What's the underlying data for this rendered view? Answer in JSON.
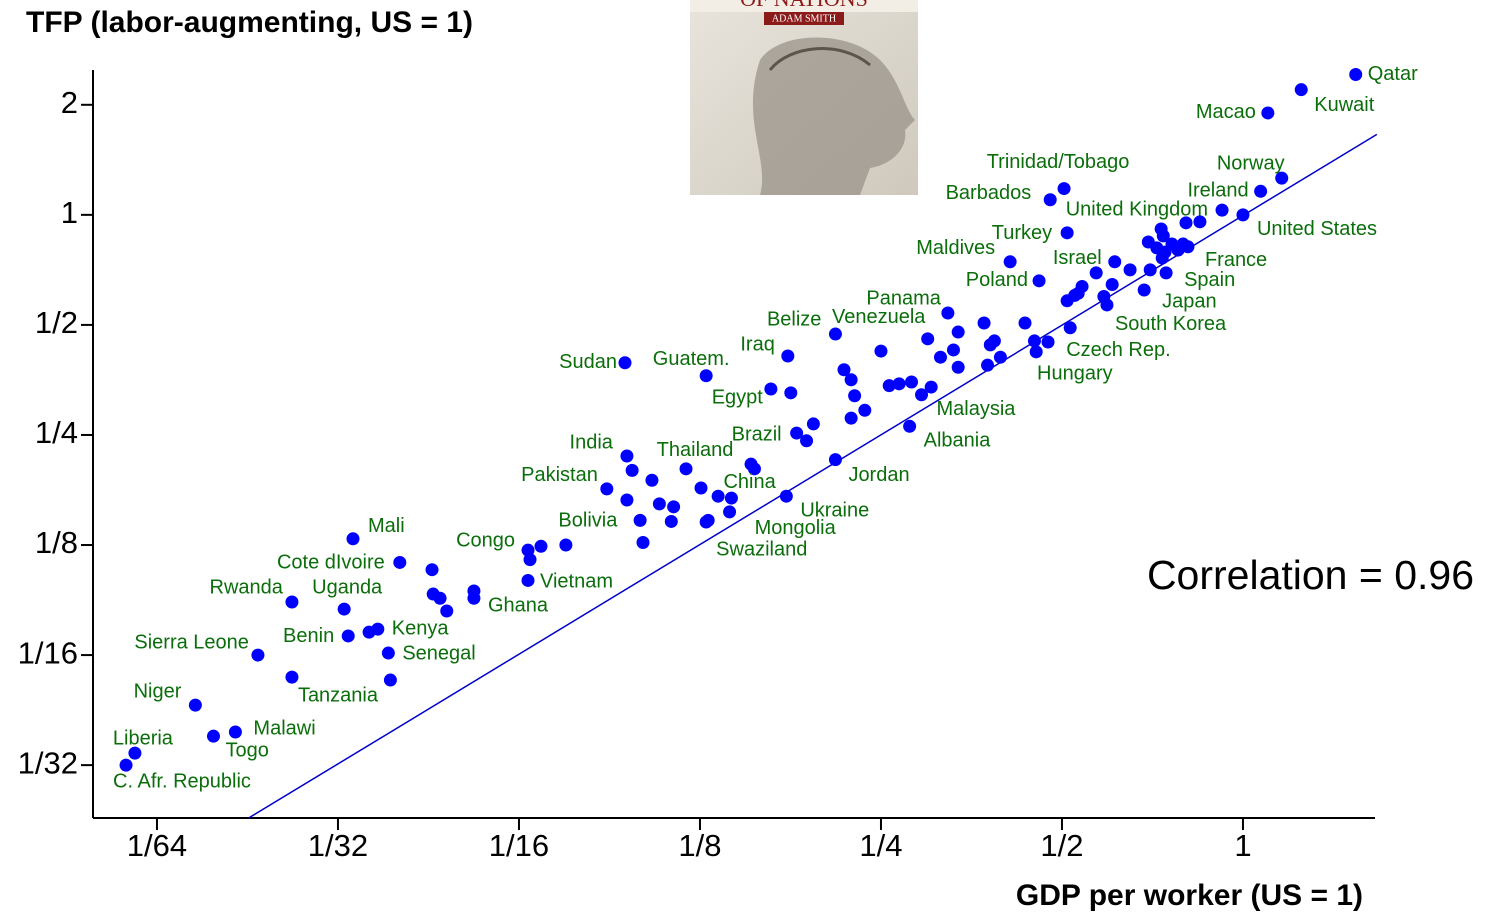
{
  "chart_data": {
    "type": "scatter",
    "ylabel": "TFP (labor-augmenting, US = 1)",
    "xlabel": "GDP per worker (US = 1)",
    "annotation": "Correlation = 0.96",
    "inset": {
      "title": "OF NATIONS",
      "author": "ADAM SMITH"
    },
    "xscale": "log",
    "yscale": "log",
    "xlim": [
      0.01223,
      1.658
    ],
    "ylim": [
      0.0224,
      2.49
    ],
    "xticks": [
      {
        "value": 0.015625,
        "label": "1/64"
      },
      {
        "value": 0.03125,
        "label": "1/32"
      },
      {
        "value": 0.0625,
        "label": "1/16"
      },
      {
        "value": 0.125,
        "label": "1/8"
      },
      {
        "value": 0.25,
        "label": "1/4"
      },
      {
        "value": 0.5,
        "label": "1/2"
      },
      1
    ],
    "yticks": [
      {
        "value": 0.03125,
        "label": "1/32"
      },
      {
        "value": 0.0625,
        "label": "1/16"
      },
      {
        "value": 0.125,
        "label": "1/8"
      },
      {
        "value": 0.25,
        "label": "1/4"
      },
      {
        "value": 0.5,
        "label": "1/2"
      },
      1,
      2
    ],
    "grid": false,
    "color": "#0000ff",
    "fit_line": {
      "x": [
        0.0222,
        1.67
      ],
      "y": [
        0.0224,
        1.66
      ],
      "color": "#0000cc"
    },
    "labels": [
      "Qatar",
      "Kuwait",
      "Macao",
      "Norway",
      "Ireland",
      "United States",
      "United Kingdom",
      "Trinidad/Tobago",
      "Barbados",
      "Turkey",
      "Maldives",
      "Israel",
      "Poland",
      "France",
      "Spain",
      "Japan",
      "South Korea",
      "Czech Rep.",
      "Hungary",
      "Panama",
      "Belize",
      "Venezuela",
      "Iraq",
      "Egypt",
      "Sudan",
      "Guatem.",
      "Malaysia",
      "Albania",
      "Brazil",
      "Jordan",
      "India",
      "Thailand",
      "Pakistan",
      "China",
      "Ukraine",
      "Mongolia",
      "Swaziland",
      "Bolivia",
      "Congo",
      "Vietnam",
      "Mali",
      "Cote dIvoire",
      "Rwanda",
      "Uganda",
      "Ghana",
      "Kenya",
      "Benin",
      "Senegal",
      "Sierra Leone",
      "Tanzania",
      "Niger",
      "Malawi",
      "Togo",
      "Liberia",
      "C. Afr. Republic",
      null,
      null,
      null,
      null,
      null,
      null,
      null,
      null,
      null,
      null,
      null,
      null,
      null,
      null,
      null,
      null,
      null,
      null,
      null,
      null,
      null,
      null,
      null,
      null,
      null,
      null,
      null,
      null,
      null,
      null,
      null,
      null,
      null,
      null,
      null,
      null,
      null,
      null,
      null,
      null,
      null,
      null,
      null,
      null,
      null,
      null,
      null,
      null,
      null,
      null,
      null,
      null,
      null,
      null,
      null,
      null,
      null,
      null,
      null,
      null,
      null,
      null,
      null,
      null,
      null,
      null,
      null
    ],
    "x": [
      1.54,
      1.25,
      1.1,
      1.16,
      1.07,
      1,
      0.923,
      0.504,
      0.478,
      0.51,
      0.41,
      0.612,
      0.458,
      0.81,
      0.745,
      0.685,
      0.594,
      0.516,
      0.474,
      0.323,
      0.21,
      0.299,
      0.175,
      0.164,
      0.0938,
      0.128,
      0.292,
      0.279,
      0.181,
      0.21,
      0.0945,
      0.1185,
      0.0875,
      0.154,
      0.174,
      0.14,
      0.128,
      0.0748,
      0.0647,
      0.0647,
      0.0331,
      0.0396,
      0.0262,
      0.032,
      0.0526,
      0.0364,
      0.0325,
      0.0379,
      0.023,
      0.0262,
      0.0181,
      0.0211,
      0.0194,
      0.01436,
      0.01388,
      0.848,
      0.804,
      0.731,
      0.737,
      0.696,
      0.719,
      0.762,
      0.795,
      0.78,
      0.742,
      0.734,
      0.701,
      0.649,
      0.57,
      0.54,
      0.532,
      0.51,
      0.525,
      0.587,
      0.606,
      0.434,
      0.371,
      0.336,
      0.33,
      0.314,
      0.38,
      0.386,
      0.395,
      0.376,
      0.45,
      0.453,
      0.336,
      0.25,
      0.217,
      0.223,
      0.226,
      0.258,
      0.268,
      0.281,
      0.303,
      0.235,
      0.223,
      0.193,
      0.188,
      0.177,
      0.152,
      0.134,
      0.141,
      0.1255,
      0.104,
      0.0964,
      0.0945,
      0.107,
      0.113,
      0.0994,
      0.112,
      0.1005,
      0.129,
      0.068,
      0.0652,
      0.0448,
      0.045,
      0.0462,
      0.0526,
      0.0474,
      0.0352,
      0.0382
    ],
    "y": [
      2.42,
      2.2,
      1.9,
      1.26,
      1.16,
      1,
      1.03,
      1.18,
      1.1,
      0.893,
      0.744,
      0.744,
      0.66,
      0.818,
      0.694,
      0.623,
      0.567,
      0.491,
      0.449,
      0.539,
      0.472,
      0.458,
      0.411,
      0.334,
      0.394,
      0.363,
      0.322,
      0.264,
      0.253,
      0.214,
      0.219,
      0.202,
      0.178,
      0.202,
      0.17,
      0.154,
      0.1445,
      0.125,
      0.121,
      0.1,
      0.13,
      0.112,
      0.0873,
      0.0835,
      0.0894,
      0.0736,
      0.0705,
      0.0633,
      0.0625,
      0.0544,
      0.0456,
      0.0385,
      0.0375,
      0.0337,
      0.03125,
      0.957,
      0.951,
      0.915,
      0.876,
      0.843,
      0.812,
      0.832,
      0.832,
      0.801,
      0.791,
      0.762,
      0.707,
      0.707,
      0.694,
      0.637,
      0.61,
      0.582,
      0.602,
      0.598,
      0.645,
      0.506,
      0.506,
      0.478,
      0.427,
      0.408,
      0.441,
      0.452,
      0.408,
      0.388,
      0.452,
      0.422,
      0.383,
      0.424,
      0.377,
      0.354,
      0.32,
      0.341,
      0.345,
      0.349,
      0.338,
      0.292,
      0.278,
      0.268,
      0.241,
      0.326,
      0.208,
      0.17,
      0.168,
      0.179,
      0.188,
      0.2,
      0.166,
      0.162,
      0.159,
      0.146,
      0.145,
      0.127,
      0.146,
      0.124,
      0.114,
      0.107,
      0.0918,
      0.0894,
      0.0936,
      0.0825,
      0.0722,
      0.0534
    ]
  }
}
